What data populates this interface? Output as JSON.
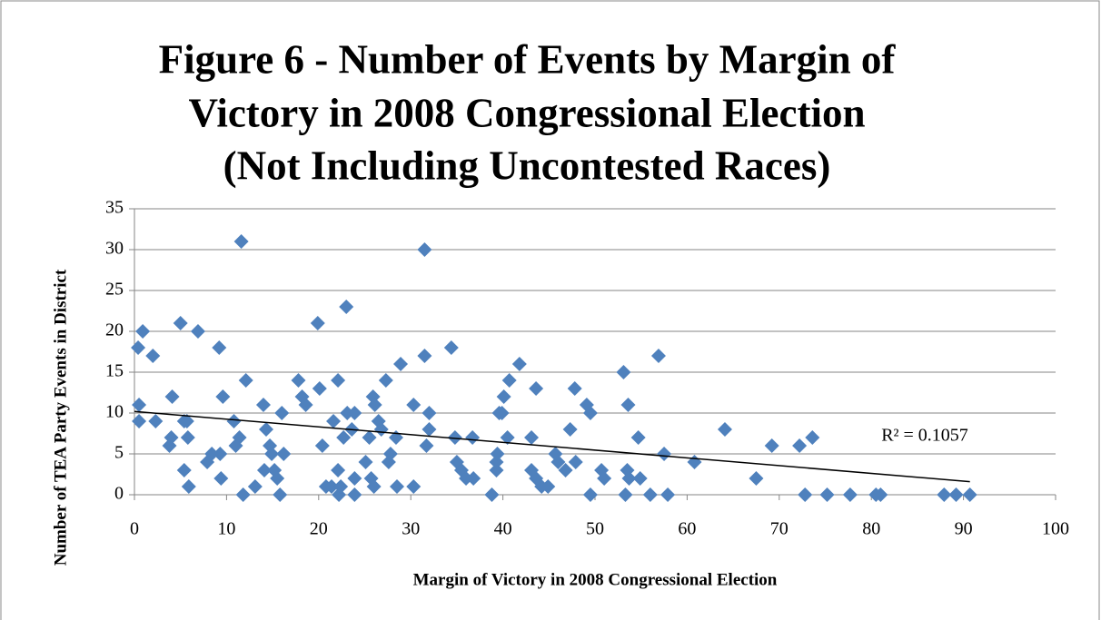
{
  "chart_data": {
    "type": "scatter",
    "title": [
      "Figure 6 - Number of Events by Margin of",
      "Victory in 2008 Congressional Election",
      "(Not Including Uncontested Races)"
    ],
    "x_label": "Margin of Victory in 2008 Congressional Election",
    "y_label": "Number of TEA Party Events in District",
    "color": "#4f81bd",
    "x": [
      0.4,
      0.5,
      0.5,
      0.9,
      2,
      2.3,
      3.8,
      4,
      4.1,
      5,
      5.4,
      5.4,
      5.7,
      5.8,
      5.9,
      6.9,
      7.9,
      8.4,
      9.2,
      9.3,
      9.4,
      9.6,
      10.8,
      11,
      11.4,
      11.6,
      11.8,
      12.1,
      13.1,
      14,
      14.1,
      14.3,
      14.7,
      14.9,
      15.2,
      15.5,
      15.8,
      16,
      16.2,
      17.8,
      18.2,
      18.6,
      19.9,
      20.1,
      20.4,
      20.8,
      21.4,
      21.6,
      22.1,
      22.1,
      22.2,
      22.4,
      22.7,
      23,
      23.1,
      23.6,
      23.9,
      23.9,
      23.9,
      25.1,
      25.5,
      25.7,
      26,
      25.9,
      26.1,
      26.5,
      26.8,
      27.3,
      27.6,
      27.8,
      28.4,
      28.5,
      28.9,
      30.3,
      30.3,
      31.5,
      31.5,
      31.7,
      32,
      32,
      34.4,
      34.8,
      35,
      35.5,
      36,
      36.7,
      36.8,
      38.8,
      39.3,
      39.3,
      39.4,
      39.6,
      39.9,
      40.1,
      40.5,
      40.7,
      41.8,
      43.1,
      43.1,
      43.6,
      43.6,
      44.2,
      44.9,
      45.7,
      46,
      46.8,
      47.3,
      47.8,
      47.9,
      49.1,
      49.5,
      49.5,
      50.7,
      51,
      53.1,
      53.3,
      53.5,
      53.7,
      53.6,
      54.7,
      54.9,
      56,
      56.9,
      57.5,
      57.9,
      60.8,
      64.1,
      67.5,
      69.2,
      72.2,
      72.8,
      73.6,
      75.2,
      77.7,
      80.5,
      81,
      87.9,
      89.2,
      90.7
    ],
    "values": [
      18,
      11,
      9,
      20,
      17,
      9,
      6,
      7,
      12,
      21,
      3,
      9,
      9,
      7,
      1,
      20,
      4,
      5,
      18,
      5,
      2,
      12,
      9,
      6,
      7,
      31,
      0,
      14,
      1,
      11,
      3,
      8,
      6,
      5,
      3,
      2,
      0,
      10,
      5,
      14,
      12,
      11,
      21,
      13,
      6,
      1,
      1,
      9,
      3,
      14,
      0,
      1,
      7,
      23,
      10,
      8,
      10,
      0,
      2,
      4,
      7,
      2,
      1,
      12,
      11,
      9,
      8,
      14,
      4,
      5,
      7,
      1,
      16,
      1,
      11,
      30,
      17,
      6,
      10,
      8,
      18,
      7,
      4,
      3,
      2,
      7,
      2,
      0,
      3,
      4,
      5,
      10,
      10,
      12,
      7,
      14,
      16,
      7,
      3,
      13,
      2,
      1,
      1,
      5,
      4,
      3,
      8,
      13,
      4,
      11,
      10,
      0,
      3,
      2,
      15,
      0,
      3,
      2,
      11,
      7,
      2,
      0,
      17,
      5,
      0,
      4,
      8,
      2,
      6,
      6,
      0,
      7,
      0,
      0,
      0,
      0,
      0,
      0,
      0
    ],
    "trendline": {
      "x": [
        0,
        90.7
      ],
      "values": [
        10.2,
        1.6
      ],
      "label": "R² = 0.1057"
    },
    "xlim": [
      0,
      100
    ],
    "xticks": [
      0,
      10,
      20,
      30,
      40,
      50,
      60,
      70,
      80,
      90,
      100
    ],
    "ylim": [
      0,
      35
    ],
    "yticks": [
      0,
      5,
      10,
      15,
      20,
      25,
      30,
      35
    ],
    "grid": true
  }
}
